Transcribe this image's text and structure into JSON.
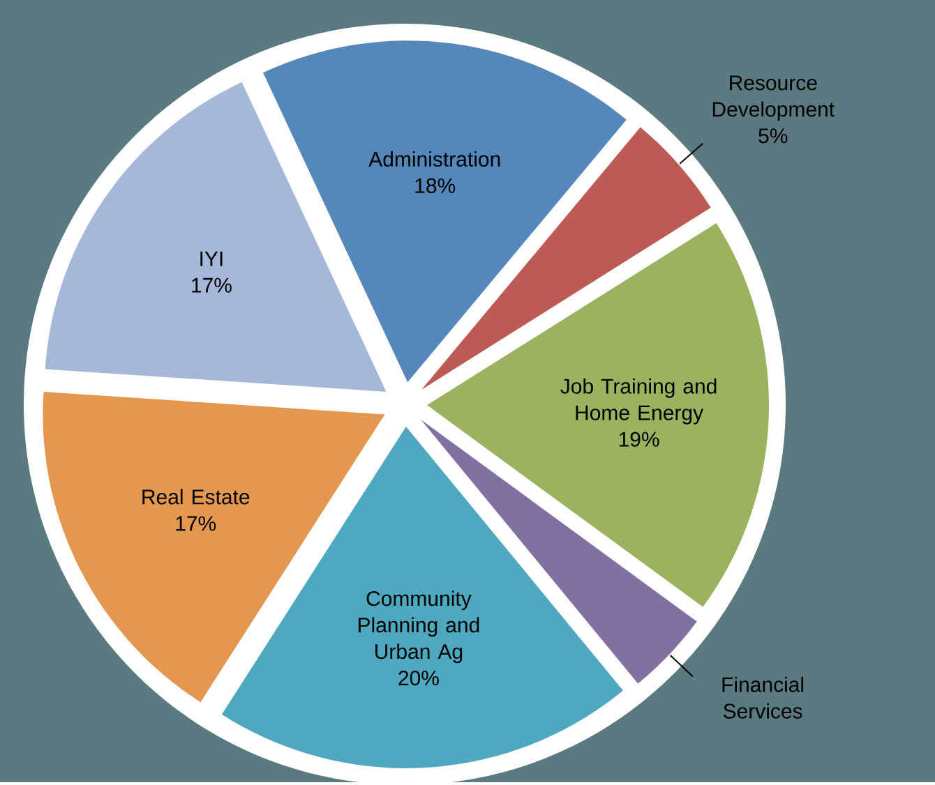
{
  "chart_data": {
    "type": "pie",
    "categories": [
      "Administration",
      "Resource Development",
      "Job Training and Home Energy",
      "Financial Services",
      "Community Planning and Urban Ag",
      "Real Estate",
      "IYI"
    ],
    "values": [
      18,
      5,
      19,
      4,
      20,
      17,
      17
    ],
    "colors": [
      "#5587bb",
      "#bc5b54",
      "#9bb25f",
      "#8270a3",
      "#4ea8bf",
      "#e4984f",
      "#a5b8d9"
    ],
    "value_labels": [
      "18%",
      "5%",
      "19%",
      null,
      "20%",
      "17%",
      "17%"
    ]
  }
}
